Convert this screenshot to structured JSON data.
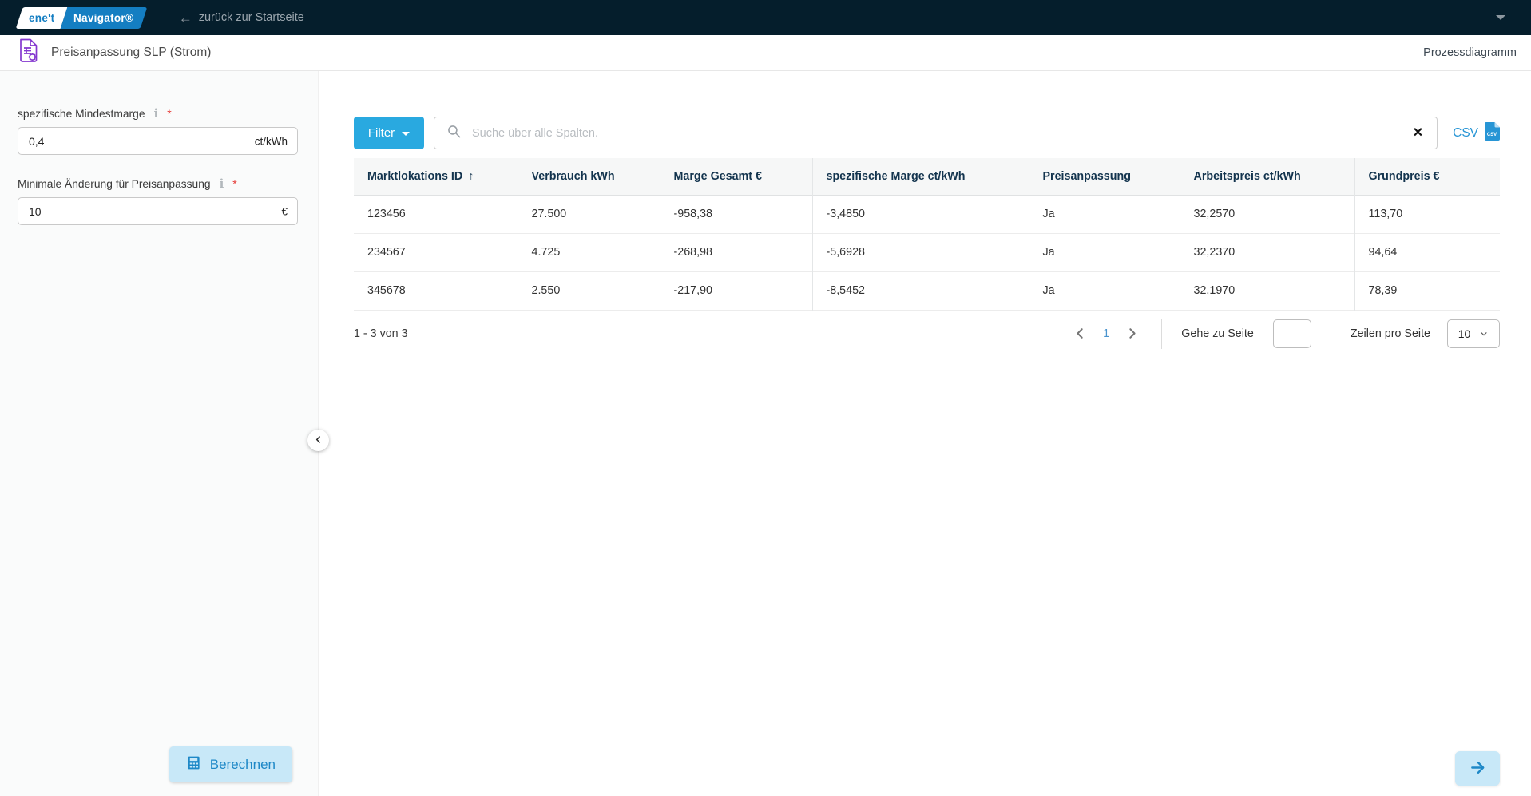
{
  "navbar": {
    "logo_primary": "ene't",
    "logo_secondary": "Navigator®",
    "back_icon": "←",
    "back_label": "zurück zur Startseite"
  },
  "header": {
    "title": "Preisanpassung SLP (Strom)",
    "process_link_label": "Prozessdiagramm"
  },
  "sidebar": {
    "fields": [
      {
        "label": "spezifische Mindestmarge",
        "info_icon": "i",
        "required_marker": "*",
        "value": "0,4",
        "unit": "ct/kWh"
      },
      {
        "label": "Minimale Änderung für Preisanpassung",
        "info_icon": "i",
        "required_marker": "*",
        "value": "10",
        "unit": "€"
      }
    ],
    "calculate_label": "Berechnen"
  },
  "toolbar": {
    "filter_label": "Filter",
    "search_placeholder": "Suche über alle Spalten.",
    "clear_icon": "✕",
    "csv_label": "CSV",
    "csv_icon_text": "CSV"
  },
  "table": {
    "columns": [
      "Marktlokations ID",
      "Verbrauch kWh",
      "Marge Gesamt €",
      "spezifische Marge ct/kWh",
      "Preisanpassung",
      "Arbeitspreis ct/kWh",
      "Grundpreis €"
    ],
    "sort_column_index": 0,
    "sort_icon": "↑",
    "rows": [
      [
        "123456",
        "27.500",
        "-958,38",
        "-3,4850",
        "Ja",
        "32,2570",
        "113,70"
      ],
      [
        "234567",
        "4.725",
        "-268,98",
        "-5,6928",
        "Ja",
        "32,2370",
        "94,64"
      ],
      [
        "345678",
        "2.550",
        "-217,90",
        "-8,5452",
        "Ja",
        "32,1970",
        "78,39"
      ]
    ]
  },
  "pagination": {
    "range_label": "1 - 3 von 3",
    "current_page": "1",
    "goto_label": "Gehe zu Seite",
    "goto_value": "",
    "rows_per_page_label": "Zeilen pro Seite",
    "rows_per_page_value": "10"
  },
  "colors": {
    "navbar_bg": "#051e2c",
    "brand_blue": "#147ec2",
    "accent_cyan": "#29a9e0",
    "link_blue": "#2795d5",
    "light_blue_button_bg": "#c8e8f8",
    "light_blue_button_fg": "#1e88c7",
    "required_red": "#e53935",
    "table_header_text": "#13344e",
    "title_icon_purple": "#8438cf",
    "page_number_blue": "#4a94ce"
  }
}
